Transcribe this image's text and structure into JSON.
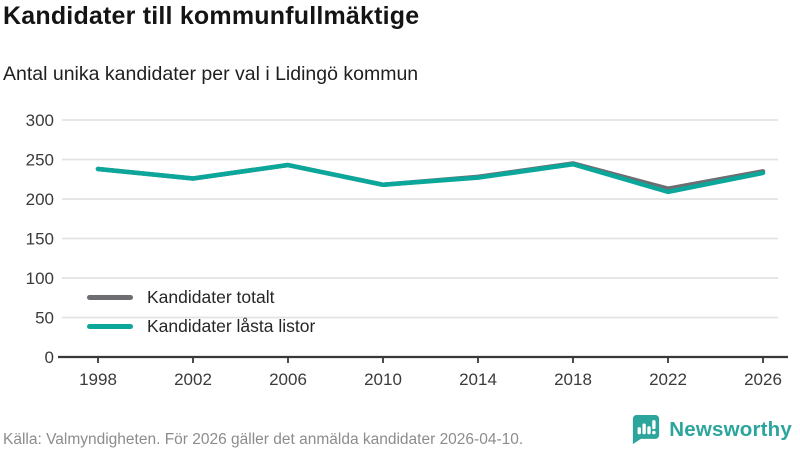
{
  "chart_data": {
    "type": "line",
    "title": "Kandidater till kommunfullmäktige",
    "subtitle": "Antal unika kandidater per val i Lidingö kommun",
    "categories": [
      "1998",
      "2002",
      "2006",
      "2010",
      "2014",
      "2018",
      "2022",
      "2026"
    ],
    "series": [
      {
        "name": "Kandidater totalt",
        "color": "#6d6d72",
        "values": [
          238,
          226,
          243,
          218,
          228,
          245,
          213,
          235
        ]
      },
      {
        "name": "Kandidater låsta listor",
        "color": "#0ba79b",
        "values": [
          238,
          226,
          243,
          218,
          227,
          244,
          209,
          233
        ]
      }
    ],
    "xlabel": "",
    "ylabel": "",
    "ylim": [
      0,
      300
    ],
    "yticks": [
      0,
      50,
      100,
      150,
      200,
      250,
      300
    ],
    "grid": "horizontal",
    "legend_position": "inside-bottom-left"
  },
  "footer": {
    "source": "Källa: Valmyndigheten. För 2026 gäller det anmälda kandidater 2026-04-10."
  },
  "branding": {
    "name": "Newsworthy",
    "color": "#2ca59d",
    "icon": "bar-chart-speech-bubble-icon"
  }
}
